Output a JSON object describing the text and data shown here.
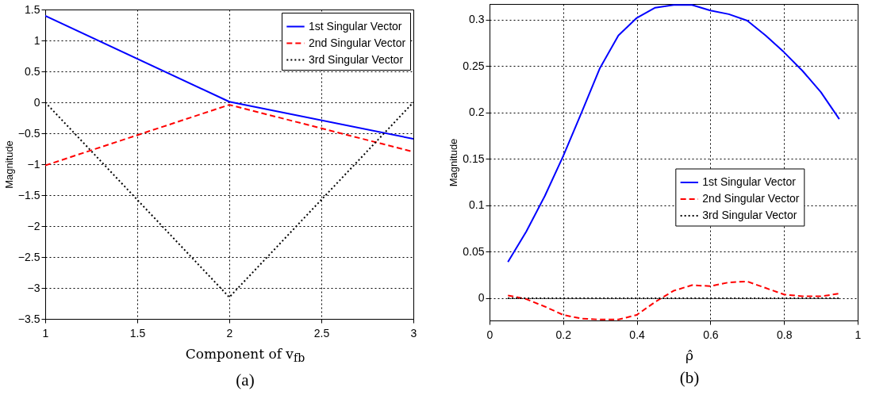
{
  "chart_data": [
    {
      "type": "line",
      "xlabel": "Component of v$_{fb}$",
      "ylabel": "Magnitude",
      "annotations": [
        "(a)"
      ],
      "x": [
        1,
        2,
        3
      ],
      "xlim": [
        1,
        3
      ],
      "xticks": [
        1,
        1.5,
        2,
        2.5,
        3
      ],
      "ylim": [
        -3.5,
        1.5
      ],
      "yticks": [
        -3.5,
        -3,
        -2.5,
        -2,
        -1.5,
        -1,
        -0.5,
        0,
        0.5,
        1,
        1.5
      ],
      "grid": true,
      "legend": "top right",
      "series": [
        {
          "name": "1st Singular Vector",
          "color": "#0000ff",
          "line_style": "solid",
          "values": [
            1.4,
            0.01,
            -0.59
          ]
        },
        {
          "name": "2nd Singular Vector",
          "color": "#ff0000",
          "line_style": "dashed",
          "values": [
            -1.02,
            -0.04,
            -0.8
          ]
        },
        {
          "name": "3rd Singular Vector",
          "color": "#000000",
          "line_style": "dotted",
          "values": [
            0,
            -3.15,
            0
          ]
        }
      ]
    },
    {
      "type": "line",
      "xlabel": "ρ̂",
      "ylabel": "Magnitude",
      "annotations": [
        "(b)"
      ],
      "x": [
        0.05,
        0.1,
        0.15,
        0.2,
        0.25,
        0.3,
        0.35,
        0.4,
        0.45,
        0.5,
        0.55,
        0.6,
        0.65,
        0.7,
        0.75,
        0.8,
        0.85,
        0.9,
        0.95
      ],
      "xlim": [
        0,
        1
      ],
      "xticks": [
        0,
        0.2,
        0.4,
        0.6,
        0.8,
        1
      ],
      "ylim": [
        -0.024,
        0.317
      ],
      "yticks": [
        0,
        0.05,
        0.1,
        0.15,
        0.2,
        0.25,
        0.3
      ],
      "grid": true,
      "legend": "right",
      "series": [
        {
          "name": "1st Singular Vector",
          "color": "#0000ff",
          "line_style": "solid",
          "values": [
            0.039,
            0.072,
            0.11,
            0.153,
            0.2,
            0.248,
            0.283,
            0.302,
            0.313,
            0.316,
            0.316,
            0.31,
            0.306,
            0.299,
            0.283,
            0.265,
            0.245,
            0.222,
            0.193
          ]
        },
        {
          "name": "2nd Singular Vector",
          "color": "#ff0000",
          "line_style": "dashed",
          "values": [
            0.003,
            -0.001,
            -0.009,
            -0.018,
            -0.022,
            -0.023,
            -0.023,
            -0.018,
            -0.004,
            0.008,
            0.014,
            0.013,
            0.017,
            0.018,
            0.011,
            0.004,
            0.002,
            0.002,
            0.005
          ]
        },
        {
          "name": "3rd Singular Vector",
          "color": "#000000",
          "line_style": "dotted",
          "values": [
            0,
            0,
            0,
            0,
            0,
            0,
            0,
            0,
            0,
            0,
            0,
            0,
            0,
            0,
            0,
            0,
            0,
            0,
            0
          ]
        }
      ]
    }
  ]
}
